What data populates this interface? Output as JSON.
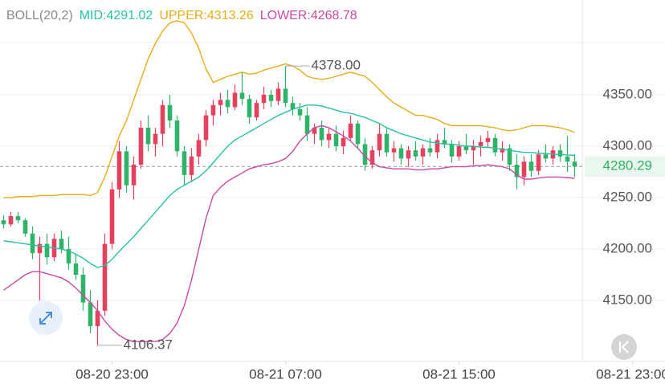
{
  "chart_data": {
    "type": "candlestick",
    "indicator": "BOLL(20,2)",
    "xlim": [
      -0.5,
      91.5
    ],
    "ylim": [
      4100,
      4450
    ],
    "xticks": [
      {
        "value": 15,
        "label": "08-20 23:00"
      },
      {
        "value": 39,
        "label": "08-21 07:00"
      },
      {
        "value": 63,
        "label": "08-21 15:00"
      },
      {
        "value": 87,
        "label": "08-21 23:00"
      }
    ],
    "yticks": [
      {
        "value": 4350,
        "label": "4350.00"
      },
      {
        "value": 4300,
        "label": "4300.00"
      },
      {
        "value": 4250,
        "label": "4250.00"
      },
      {
        "value": 4200,
        "label": "4200.00"
      },
      {
        "value": 4150,
        "label": "4150.00"
      }
    ],
    "grid": true,
    "up_color": "#e5405e",
    "down_color": "#2fb368",
    "open": [
      4228,
      4224,
      4232,
      4228,
      4215,
      4196,
      4205,
      4192,
      4210,
      4200,
      4186,
      4175,
      4148,
      4125,
      4140,
      4205,
      4258,
      4295,
      4262,
      4282,
      4318,
      4302,
      4312,
      4340,
      4325,
      4295,
      4272,
      4290,
      4306,
      4330,
      4340,
      4345,
      4338,
      4352,
      4346,
      4328,
      4342,
      4350,
      4344,
      4356,
      4342,
      4336,
      4330,
      4312,
      4318,
      4306,
      4312,
      4300,
      4308,
      4322,
      4302,
      4282,
      4296,
      4312,
      4294,
      4298,
      4288,
      4296,
      4290,
      4298,
      4294,
      4306,
      4302,
      4290,
      4300,
      4296,
      4300,
      4304,
      4308,
      4294,
      4298,
      4282,
      4270,
      4285,
      4276,
      4292,
      4288,
      4296,
      4290,
      4285
    ],
    "high": [
      4233,
      4236,
      4236,
      4230,
      4222,
      4212,
      4215,
      4215,
      4218,
      4212,
      4195,
      4182,
      4160,
      4150,
      4215,
      4265,
      4305,
      4300,
      4290,
      4325,
      4330,
      4318,
      4345,
      4350,
      4330,
      4300,
      4298,
      4312,
      4335,
      4345,
      4352,
      4355,
      4360,
      4372,
      4350,
      4345,
      4358,
      4355,
      4362,
      4378,
      4348,
      4342,
      4338,
      4322,
      4325,
      4318,
      4320,
      4315,
      4330,
      4325,
      4308,
      4300,
      4322,
      4318,
      4305,
      4302,
      4300,
      4305,
      4302,
      4308,
      4312,
      4318,
      4306,
      4305,
      4312,
      4306,
      4310,
      4315,
      4312,
      4305,
      4302,
      4292,
      4290,
      4292,
      4296,
      4302,
      4300,
      4302,
      4310,
      4292
    ],
    "low": [
      4220,
      4222,
      4225,
      4212,
      4190,
      4150,
      4185,
      4188,
      4196,
      4180,
      4170,
      4140,
      4118,
      4106.37,
      4135,
      4200,
      4250,
      4255,
      4248,
      4278,
      4295,
      4290,
      4300,
      4318,
      4290,
      4262,
      4265,
      4282,
      4300,
      4320,
      4330,
      4332,
      4335,
      4340,
      4322,
      4325,
      4336,
      4338,
      4340,
      4338,
      4330,
      4325,
      4305,
      4302,
      4300,
      4298,
      4295,
      4292,
      4305,
      4298,
      4276,
      4278,
      4290,
      4290,
      4285,
      4282,
      4280,
      4286,
      4282,
      4290,
      4288,
      4298,
      4284,
      4286,
      4292,
      4282,
      4290,
      4298,
      4290,
      4286,
      4276,
      4258,
      4262,
      4270,
      4272,
      4284,
      4282,
      4285,
      4275,
      4270
    ],
    "close": [
      4224,
      4232,
      4228,
      4215,
      4196,
      4205,
      4192,
      4210,
      4200,
      4186,
      4175,
      4148,
      4125,
      4140,
      4205,
      4258,
      4295,
      4262,
      4282,
      4318,
      4302,
      4312,
      4340,
      4325,
      4295,
      4272,
      4290,
      4306,
      4330,
      4340,
      4345,
      4338,
      4352,
      4346,
      4328,
      4342,
      4350,
      4344,
      4356,
      4342,
      4336,
      4330,
      4312,
      4318,
      4306,
      4312,
      4300,
      4308,
      4322,
      4302,
      4282,
      4296,
      4312,
      4294,
      4298,
      4288,
      4296,
      4290,
      4298,
      4294,
      4306,
      4302,
      4290,
      4300,
      4296,
      4300,
      4304,
      4308,
      4294,
      4298,
      4282,
      4270,
      4285,
      4276,
      4292,
      4288,
      4296,
      4290,
      4285,
      4280.29
    ],
    "series": [
      {
        "name": "MID:4291.02",
        "color": "#27c2a3",
        "values": [
          4208,
          4207,
          4206,
          4205,
          4204,
          4203,
          4202,
          4201,
          4200,
          4198,
          4195,
          4191,
          4186,
          4182,
          4184,
          4190,
          4198,
          4205,
          4212,
          4220,
          4228,
          4236,
          4244,
          4252,
          4258,
          4262,
          4266,
          4270,
          4276,
          4284,
          4292,
          4300,
          4306,
          4310,
          4314,
          4318,
          4322,
          4326,
          4330,
          4333,
          4336,
          4338,
          4340,
          4340,
          4339,
          4337,
          4335,
          4333,
          4332,
          4330,
          4328,
          4325,
          4322,
          4318,
          4315,
          4312,
          4310,
          4308,
          4306,
          4304,
          4303,
          4302,
          4302,
          4301,
          4300,
          4300,
          4299,
          4299,
          4298,
          4297,
          4296,
          4295,
          4294,
          4294,
          4293,
          4293,
          4292,
          4292,
          4291.5,
          4291.02
        ]
      },
      {
        "name": "UPPER:4313.26",
        "color": "#e6ad1c",
        "values": [
          4250,
          4250,
          4251,
          4251,
          4251,
          4252,
          4252,
          4252,
          4253,
          4253,
          4253,
          4253,
          4252,
          4255,
          4270,
          4290,
          4310,
          4325,
          4345,
          4365,
          4385,
          4400,
          4412,
          4420,
          4422,
          4420,
          4410,
          4395,
          4375,
          4362,
          4365,
          4368,
          4370,
          4372,
          4370,
          4371,
          4374,
          4376,
          4378,
          4380,
          4378,
          4374,
          4368,
          4366,
          4365,
          4366,
          4368,
          4370,
          4372,
          4370,
          4368,
          4362,
          4355,
          4348,
          4342,
          4338,
          4334,
          4330,
          4330,
          4328,
          4326,
          4322,
          4320,
          4320,
          4320,
          4320,
          4320,
          4319,
          4318,
          4316,
          4315,
          4316,
          4318,
          4320,
          4320,
          4320,
          4319,
          4318,
          4316,
          4313.26
        ]
      },
      {
        "name": "LOWER:4268.78",
        "color": "#c94ba3",
        "values": [
          4160,
          4165,
          4170,
          4175,
          4178,
          4178,
          4176,
          4174,
          4172,
          4168,
          4162,
          4155,
          4148,
          4140,
          4130,
          4122,
          4116,
          4112,
          4110,
          4110,
          4110,
          4110,
          4112,
          4118,
          4128,
          4145,
          4170,
          4200,
          4230,
          4252,
          4260,
          4266,
          4270,
          4274,
          4278,
          4280,
          4282,
          4283,
          4285,
          4288,
          4295,
          4305,
          4312,
          4318,
          4320,
          4318,
          4314,
          4310,
          4305,
          4298,
          4290,
          4284,
          4280,
          4279,
          4278,
          4278,
          4278,
          4277,
          4277,
          4278,
          4278,
          4279,
          4280,
          4280,
          4280,
          4281,
          4281,
          4282,
          4281,
          4280,
          4278,
          4272,
          4268,
          4268,
          4269,
          4270,
          4270,
          4270,
          4269.5,
          4268.78
        ]
      }
    ],
    "annotations": [
      {
        "x": 39,
        "value": 4378,
        "label": "4378.00"
      },
      {
        "x": 13,
        "value": 4106.37,
        "label": "4106.37"
      }
    ],
    "last": {
      "value": 4280.29,
      "label": "4280.29"
    }
  }
}
